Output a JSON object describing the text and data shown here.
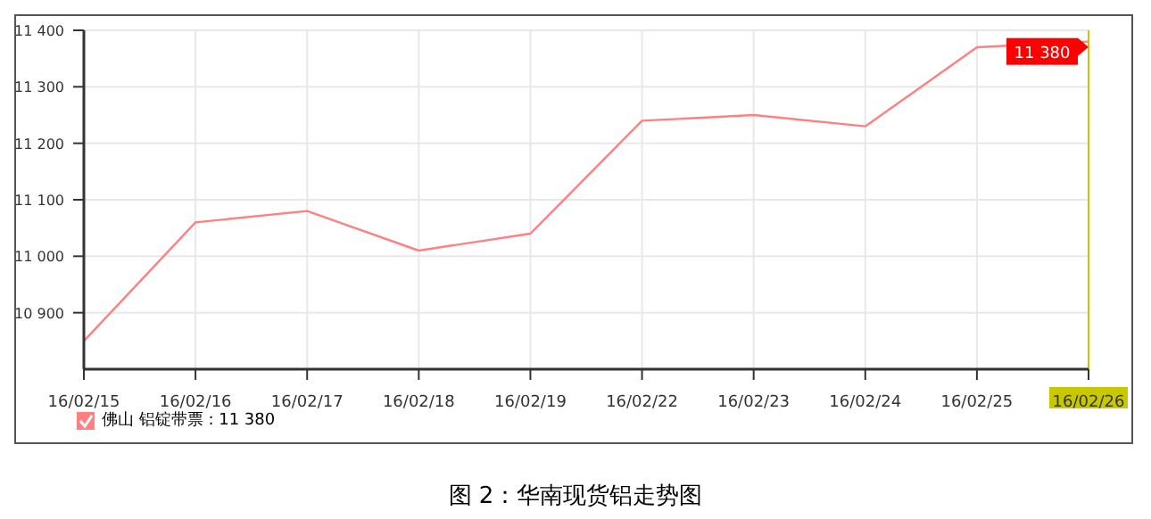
{
  "chart_data": {
    "type": "line",
    "title": "图 2：华南现货铝走势图",
    "categories": [
      "16/02/15",
      "16/02/16",
      "16/02/17",
      "16/02/18",
      "16/02/19",
      "16/02/22",
      "16/02/23",
      "16/02/24",
      "16/02/25",
      "16/02/26"
    ],
    "series": [
      {
        "name": "佛山 铝锭带票 : 11 380",
        "color": "#ff8080",
        "values": [
          10850,
          11060,
          11080,
          11010,
          11040,
          11240,
          11250,
          11230,
          11370,
          11380
        ],
        "value_labels": [
          null,
          null,
          null,
          null,
          null,
          null,
          null,
          null,
          null,
          "11 380"
        ]
      }
    ],
    "ylim": [
      10800,
      11400
    ],
    "yticks": [
      {
        "value": 10900,
        "label": "10 900"
      },
      {
        "value": 11000,
        "label": "11 000"
      },
      {
        "value": 11100,
        "label": "11 100"
      },
      {
        "value": 11200,
        "label": "11 200"
      },
      {
        "value": 11300,
        "label": "11 300"
      },
      {
        "value": 11400,
        "label": "11 400"
      }
    ],
    "ref_lines": [
      {
        "axis": "x",
        "value": "16/02/26",
        "color": "#c8c800"
      }
    ],
    "grid": true,
    "legend": "bottom left",
    "marker": "none",
    "line_style": "solid"
  }
}
